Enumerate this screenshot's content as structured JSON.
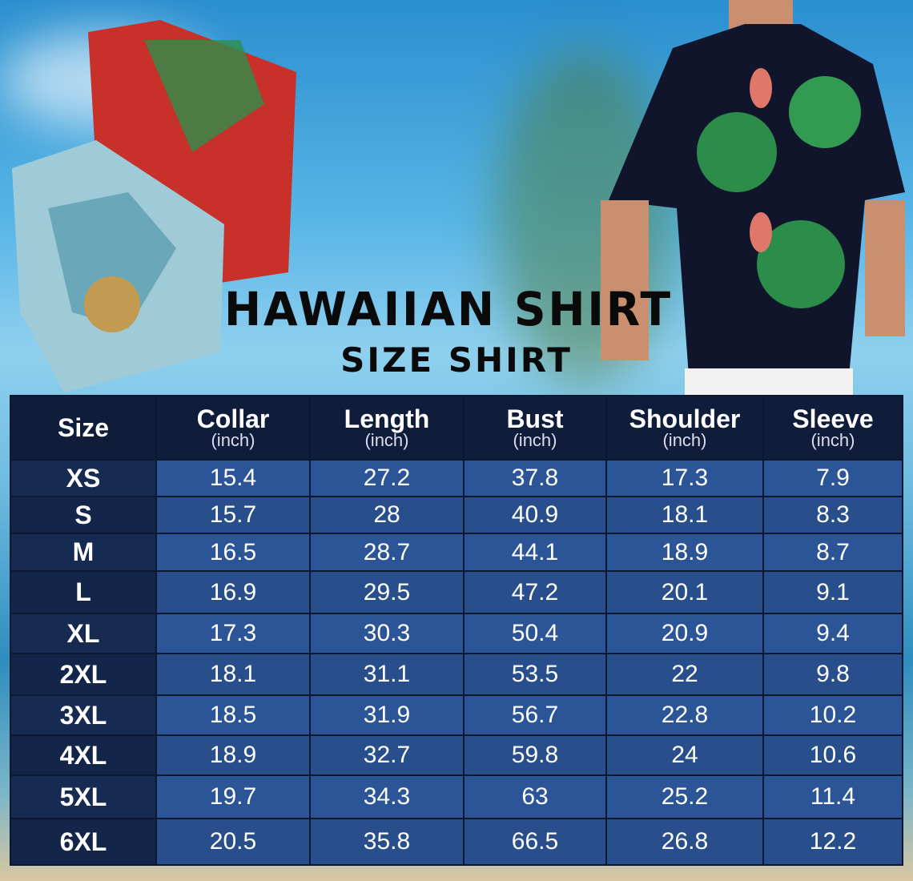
{
  "title": "HAWAIIAN SHIRT",
  "subtitle": "SIZE SHIRT",
  "table": {
    "headers": [
      {
        "label": "Size",
        "unit": ""
      },
      {
        "label": "Collar",
        "unit": "(inch)"
      },
      {
        "label": "Length",
        "unit": "(inch)"
      },
      {
        "label": "Bust",
        "unit": "(inch)"
      },
      {
        "label": "Shoulder",
        "unit": "(inch)"
      },
      {
        "label": "Sleeve",
        "unit": "(inch)"
      }
    ],
    "rows": [
      [
        "XS",
        "15.4",
        "27.2",
        "37.8",
        "17.3",
        "7.9"
      ],
      [
        "S",
        "15.7",
        "28",
        "40.9",
        "18.1",
        "8.3"
      ],
      [
        "M",
        "16.5",
        "28.7",
        "44.1",
        "18.9",
        "8.7"
      ],
      [
        "L",
        "16.9",
        "29.5",
        "47.2",
        "20.1",
        "9.1"
      ],
      [
        "XL",
        "17.3",
        "30.3",
        "50.4",
        "20.9",
        "9.4"
      ],
      [
        "2XL",
        "18.1",
        "31.1",
        "53.5",
        "22",
        "9.8"
      ],
      [
        "3XL",
        "18.5",
        "31.9",
        "56.7",
        "22.8",
        "10.2"
      ],
      [
        "4XL",
        "18.9",
        "32.7",
        "59.8",
        "24",
        "10.6"
      ],
      [
        "5XL",
        "19.7",
        "34.3",
        "63",
        "25.2",
        "11.4"
      ],
      [
        "6XL",
        "20.5",
        "35.8",
        "66.5",
        "26.8",
        "12.2"
      ]
    ]
  },
  "colors": {
    "header": "#0f1d3a",
    "size_cell": "#162a52",
    "cell": "#2b5597"
  }
}
